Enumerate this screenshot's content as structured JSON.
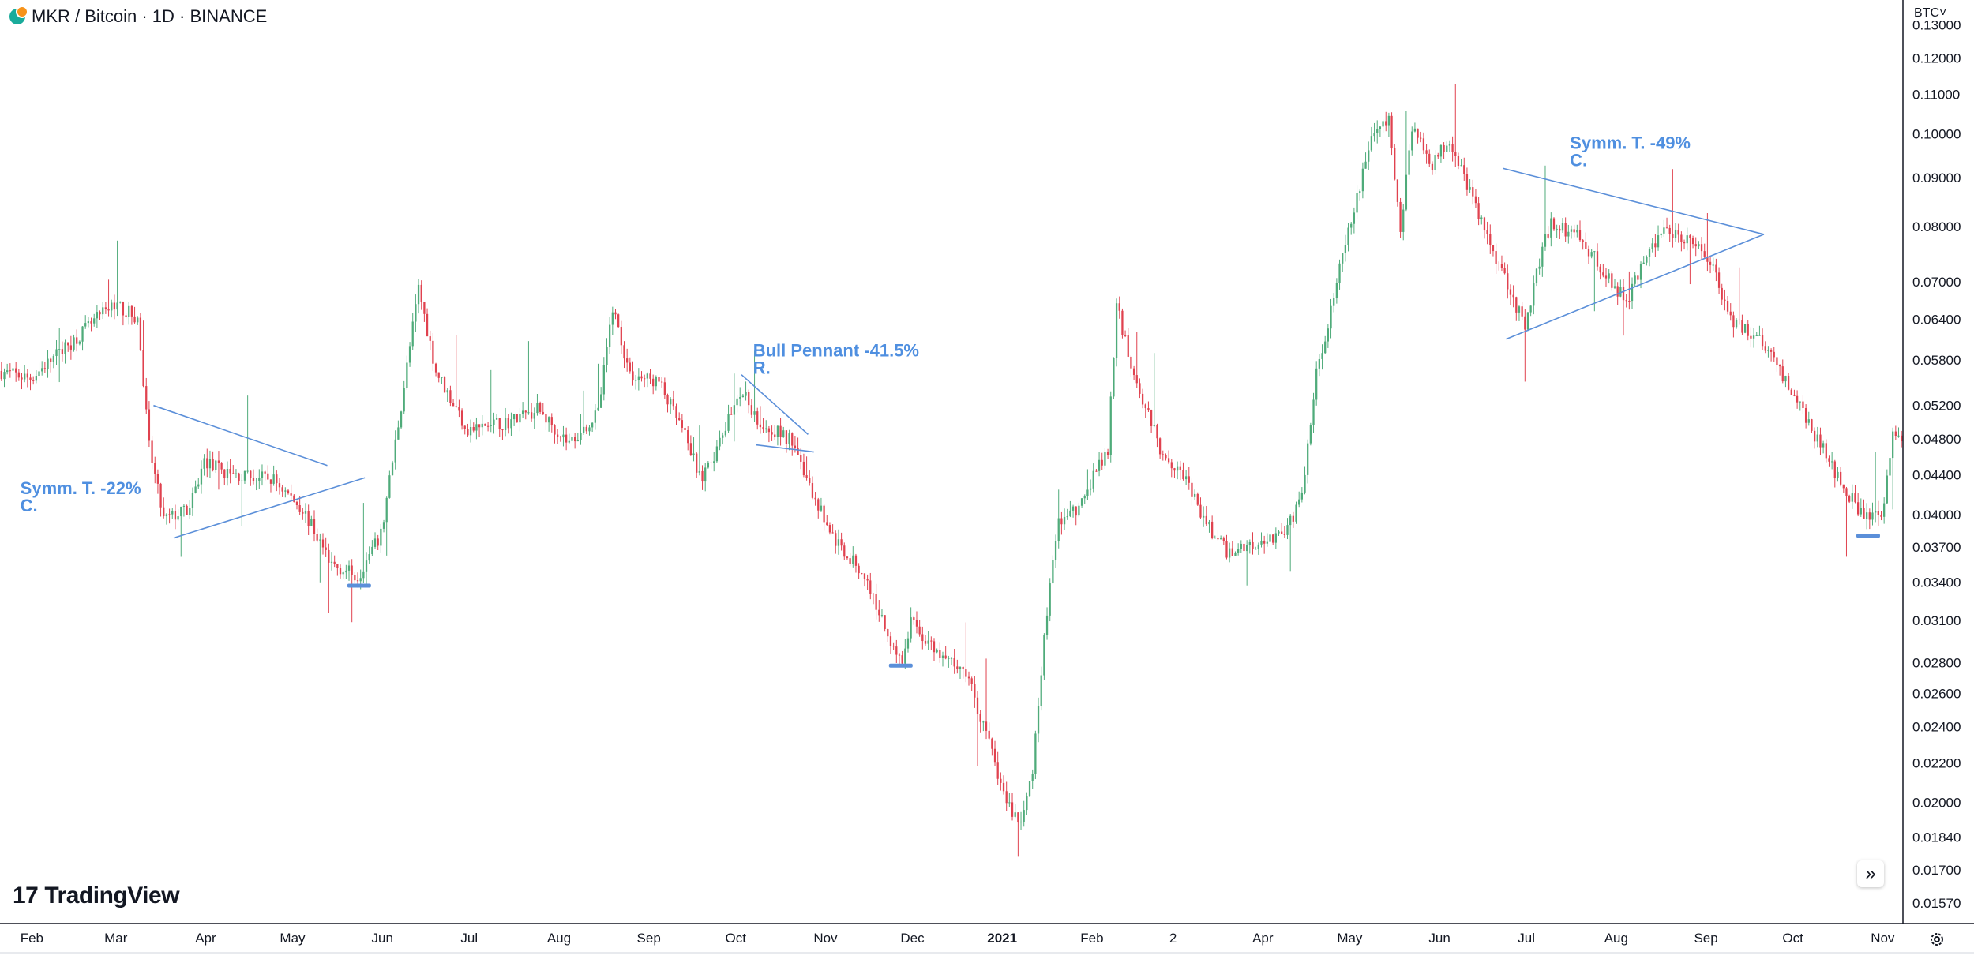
{
  "legend": {
    "symbol_text": "MKR / Bitcoin · 1D · BINANCE"
  },
  "currency_button": "BTC˅",
  "brand": {
    "mark": "17",
    "name": "TradingView"
  },
  "scroll_button": "»",
  "colors": {
    "up": "#4fab7a",
    "down": "#e0424f",
    "drawing": "#5b8fd9",
    "annotation": "#4f8fe0",
    "axis_text": "#131722"
  },
  "chart_data": {
    "type": "candlestick",
    "symbol": "MKR / Bitcoin",
    "interval": "1D",
    "exchange": "BINANCE",
    "y_scale": "log",
    "ylim": [
      0.015,
      0.138
    ],
    "y_ticks": [
      "0.13000",
      "0.12000",
      "0.11000",
      "0.10000",
      "0.09000",
      "0.08000",
      "0.07000",
      "0.06400",
      "0.05800",
      "0.05200",
      "0.04800",
      "0.04400",
      "0.04000",
      "0.03700",
      "0.03400",
      "0.03100",
      "0.02800",
      "0.02600",
      "0.02400",
      "0.02200",
      "0.02000",
      "0.01840",
      "0.01700",
      "0.01570"
    ],
    "x_ticks": [
      {
        "date": "2020-02-01",
        "label": "Feb",
        "bold": false
      },
      {
        "date": "2020-03-01",
        "label": "Mar",
        "bold": false
      },
      {
        "date": "2020-04-01",
        "label": "Apr",
        "bold": false
      },
      {
        "date": "2020-05-01",
        "label": "May",
        "bold": false
      },
      {
        "date": "2020-06-01",
        "label": "Jun",
        "bold": false
      },
      {
        "date": "2020-07-01",
        "label": "Jul",
        "bold": false
      },
      {
        "date": "2020-08-01",
        "label": "Aug",
        "bold": false
      },
      {
        "date": "2020-09-01",
        "label": "Sep",
        "bold": false
      },
      {
        "date": "2020-10-01",
        "label": "Oct",
        "bold": false
      },
      {
        "date": "2020-11-01",
        "label": "Nov",
        "bold": false
      },
      {
        "date": "2020-12-01",
        "label": "Dec",
        "bold": false
      },
      {
        "date": "2021-01-01",
        "label": "2021",
        "bold": true
      },
      {
        "date": "2021-02-01",
        "label": "Feb",
        "bold": false
      },
      {
        "date": "2021-03-01",
        "label": "2",
        "bold": false
      },
      {
        "date": "2021-04-01",
        "label": "Apr",
        "bold": false
      },
      {
        "date": "2021-05-01",
        "label": "May",
        "bold": false
      },
      {
        "date": "2021-06-01",
        "label": "Jun",
        "bold": false
      },
      {
        "date": "2021-07-01",
        "label": "Jul",
        "bold": false
      },
      {
        "date": "2021-08-01",
        "label": "Aug",
        "bold": false
      },
      {
        "date": "2021-09-01",
        "label": "Sep",
        "bold": false
      },
      {
        "date": "2021-10-01",
        "label": "Oct",
        "bold": false
      },
      {
        "date": "2021-11-01",
        "label": "Nov",
        "bold": false
      }
    ],
    "date_range": [
      "2020-01-21",
      "2021-11-08"
    ],
    "price_path": [
      [
        "2020-01-21",
        0.0565
      ],
      [
        "2020-02-01",
        0.0555
      ],
      [
        "2020-02-15",
        0.0605
      ],
      [
        "2020-03-01",
        0.0665
      ],
      [
        "2020-03-09",
        0.064
      ],
      [
        "2020-03-13",
        0.047
      ],
      [
        "2020-03-18",
        0.0395
      ],
      [
        "2020-03-27",
        0.0405
      ],
      [
        "2020-04-01",
        0.0455
      ],
      [
        "2020-04-10",
        0.044
      ],
      [
        "2020-04-25",
        0.0435
      ],
      [
        "2020-05-05",
        0.0405
      ],
      [
        "2020-05-15",
        0.0355
      ],
      [
        "2020-05-24",
        0.0345
      ],
      [
        "2020-06-01",
        0.038
      ],
      [
        "2020-06-08",
        0.052
      ],
      [
        "2020-06-14",
        0.069
      ],
      [
        "2020-06-20",
        0.0565
      ],
      [
        "2020-07-01",
        0.049
      ],
      [
        "2020-07-15",
        0.05
      ],
      [
        "2020-07-25",
        0.0515
      ],
      [
        "2020-08-05",
        0.0475
      ],
      [
        "2020-08-15",
        0.051
      ],
      [
        "2020-08-20",
        0.066
      ],
      [
        "2020-08-26",
        0.056
      ],
      [
        "2020-09-05",
        0.055
      ],
      [
        "2020-09-13",
        0.049
      ],
      [
        "2020-09-20",
        0.0435
      ],
      [
        "2020-09-26",
        0.0475
      ],
      [
        "2020-10-03",
        0.054
      ],
      [
        "2020-10-10",
        0.05
      ],
      [
        "2020-10-22",
        0.0475
      ],
      [
        "2020-10-28",
        0.042
      ],
      [
        "2020-11-05",
        0.0375
      ],
      [
        "2020-11-15",
        0.0345
      ],
      [
        "2020-11-22",
        0.0305
      ],
      [
        "2020-11-28",
        0.028
      ],
      [
        "2020-12-01",
        0.031
      ],
      [
        "2020-12-10",
        0.0285
      ],
      [
        "2020-12-20",
        0.0275
      ],
      [
        "2020-12-27",
        0.0235
      ],
      [
        "2021-01-03",
        0.02
      ],
      [
        "2021-01-08",
        0.019
      ],
      [
        "2021-01-12",
        0.0215
      ],
      [
        "2021-01-16",
        0.03
      ],
      [
        "2021-01-21",
        0.0395
      ],
      [
        "2021-01-28",
        0.0405
      ],
      [
        "2021-02-03",
        0.0445
      ],
      [
        "2021-02-07",
        0.0465
      ],
      [
        "2021-02-10",
        0.066
      ],
      [
        "2021-02-16",
        0.056
      ],
      [
        "2021-02-25",
        0.047
      ],
      [
        "2021-03-05",
        0.044
      ],
      [
        "2021-03-12",
        0.0395
      ],
      [
        "2021-03-20",
        0.0365
      ],
      [
        "2021-04-01",
        0.0375
      ],
      [
        "2021-04-10",
        0.0385
      ],
      [
        "2021-04-15",
        0.042
      ],
      [
        "2021-04-20",
        0.056
      ],
      [
        "2021-04-27",
        0.07
      ],
      [
        "2021-05-03",
        0.083
      ],
      [
        "2021-05-09",
        0.1
      ],
      [
        "2021-05-15",
        0.103
      ],
      [
        "2021-05-19",
        0.079
      ],
      [
        "2021-05-23",
        0.102
      ],
      [
        "2021-05-30",
        0.093
      ],
      [
        "2021-06-05",
        0.099
      ],
      [
        "2021-06-12",
        0.087
      ],
      [
        "2021-06-18",
        0.078
      ],
      [
        "2021-06-25",
        0.07
      ],
      [
        "2021-07-01",
        0.0625
      ],
      [
        "2021-07-05",
        0.072
      ],
      [
        "2021-07-10",
        0.081
      ],
      [
        "2021-07-20",
        0.078
      ],
      [
        "2021-08-01",
        0.069
      ],
      [
        "2021-08-05",
        0.067
      ],
      [
        "2021-08-12",
        0.074
      ],
      [
        "2021-08-18",
        0.08
      ],
      [
        "2021-08-28",
        0.077
      ],
      [
        "2021-09-03",
        0.074
      ],
      [
        "2021-09-10",
        0.064
      ],
      [
        "2021-09-20",
        0.061
      ],
      [
        "2021-09-28",
        0.056
      ],
      [
        "2021-10-05",
        0.051
      ],
      [
        "2021-10-15",
        0.045
      ],
      [
        "2021-10-25",
        0.04
      ],
      [
        "2021-11-01",
        0.0395
      ],
      [
        "2021-11-03",
        0.044
      ],
      [
        "2021-11-05",
        0.0485
      ],
      [
        "2021-11-08",
        0.048
      ]
    ],
    "trendlines": [
      {
        "name": "sym-tri-1-upper",
        "from": [
          "2020-03-14",
          0.052
        ],
        "to": [
          "2020-05-13",
          0.045
        ]
      },
      {
        "name": "sym-tri-1-lower",
        "from": [
          "2020-03-21",
          0.0378
        ],
        "to": [
          "2020-05-26",
          0.0437
        ]
      },
      {
        "name": "pennant-upper",
        "from": [
          "2020-10-03",
          0.056
        ],
        "to": [
          "2020-10-26",
          0.0485
        ]
      },
      {
        "name": "pennant-lower",
        "from": [
          "2020-10-08",
          0.0473
        ],
        "to": [
          "2020-10-28",
          0.0465
        ]
      },
      {
        "name": "sym-tri-2-upper",
        "from": [
          "2021-06-23",
          0.092
        ],
        "to": [
          "2021-09-21",
          0.0785
        ]
      },
      {
        "name": "sym-tri-2-lower",
        "from": [
          "2021-06-24",
          0.061
        ],
        "to": [
          "2021-09-21",
          0.0785
        ]
      }
    ],
    "markers": [
      {
        "date": "2020-05-24",
        "price": 0.0337
      },
      {
        "date": "2020-11-27",
        "price": 0.0278
      },
      {
        "date": "2021-10-27",
        "price": 0.038
      }
    ],
    "annotations": [
      {
        "line1": "Symm. T. -22%",
        "line2": "C.",
        "date": "2020-01-28",
        "price": 0.042
      },
      {
        "line1": "Bull Pennant -41.5%",
        "line2": "R.",
        "date": "2020-10-07",
        "price": 0.0585
      },
      {
        "line1": "Symm. T. -49%",
        "line2": "C.",
        "date": "2021-07-16",
        "price": 0.0965
      }
    ]
  }
}
